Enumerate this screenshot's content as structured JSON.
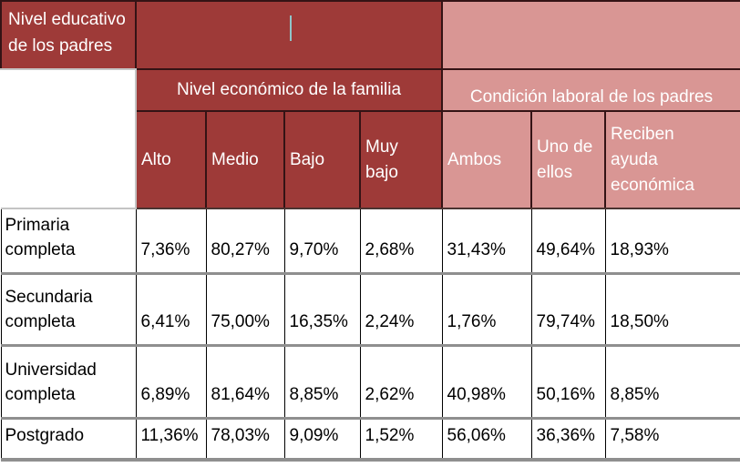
{
  "colors": {
    "dark_red": "#9E3A38",
    "pink": "#D99694",
    "header_text": "#FFFFFF",
    "body_text": "#000000",
    "grid_gray": "#8F8F8F",
    "cursor_teal": "#8FC5C9"
  },
  "chart_data": {
    "type": "table",
    "row_header": "Nivel educativo de los padres",
    "column_groups": [
      {
        "label": "Nivel económico de la familia",
        "columns": [
          "Alto",
          "Medio",
          "Bajo",
          "Muy bajo"
        ]
      },
      {
        "label": "Condición laboral de los padres",
        "columns": [
          "Ambos",
          "Uno de ellos",
          "Reciben ayuda económica"
        ]
      }
    ],
    "rows": [
      {
        "label": "Primaria completa",
        "values": [
          "7,36%",
          "80,27%",
          "9,70%",
          "2,68%",
          "31,43%",
          "49,64%",
          "18,93%"
        ]
      },
      {
        "label": "Secundaria completa",
        "values": [
          "6,41%",
          "75,00%",
          "16,35%",
          "2,24%",
          "1,76%",
          "79,74%",
          "18,50%"
        ]
      },
      {
        "label": "Universidad completa",
        "values": [
          "6,89%",
          "81,64%",
          "8,85%",
          "2,62%",
          "40,98%",
          "50,16%",
          "8,85%"
        ]
      },
      {
        "label": "Postgrado",
        "values": [
          "11,36%",
          "78,03%",
          "9,09%",
          "1,52%",
          "56,06%",
          "36,36%",
          "7,58%"
        ]
      }
    ]
  },
  "display": {
    "col_headers_wrapped": [
      "Alto",
      "Medio",
      "Bajo",
      "Muy\nbajo",
      "Ambos",
      "Uno de\nellos",
      "Reciben\nayuda\neconómica"
    ]
  }
}
